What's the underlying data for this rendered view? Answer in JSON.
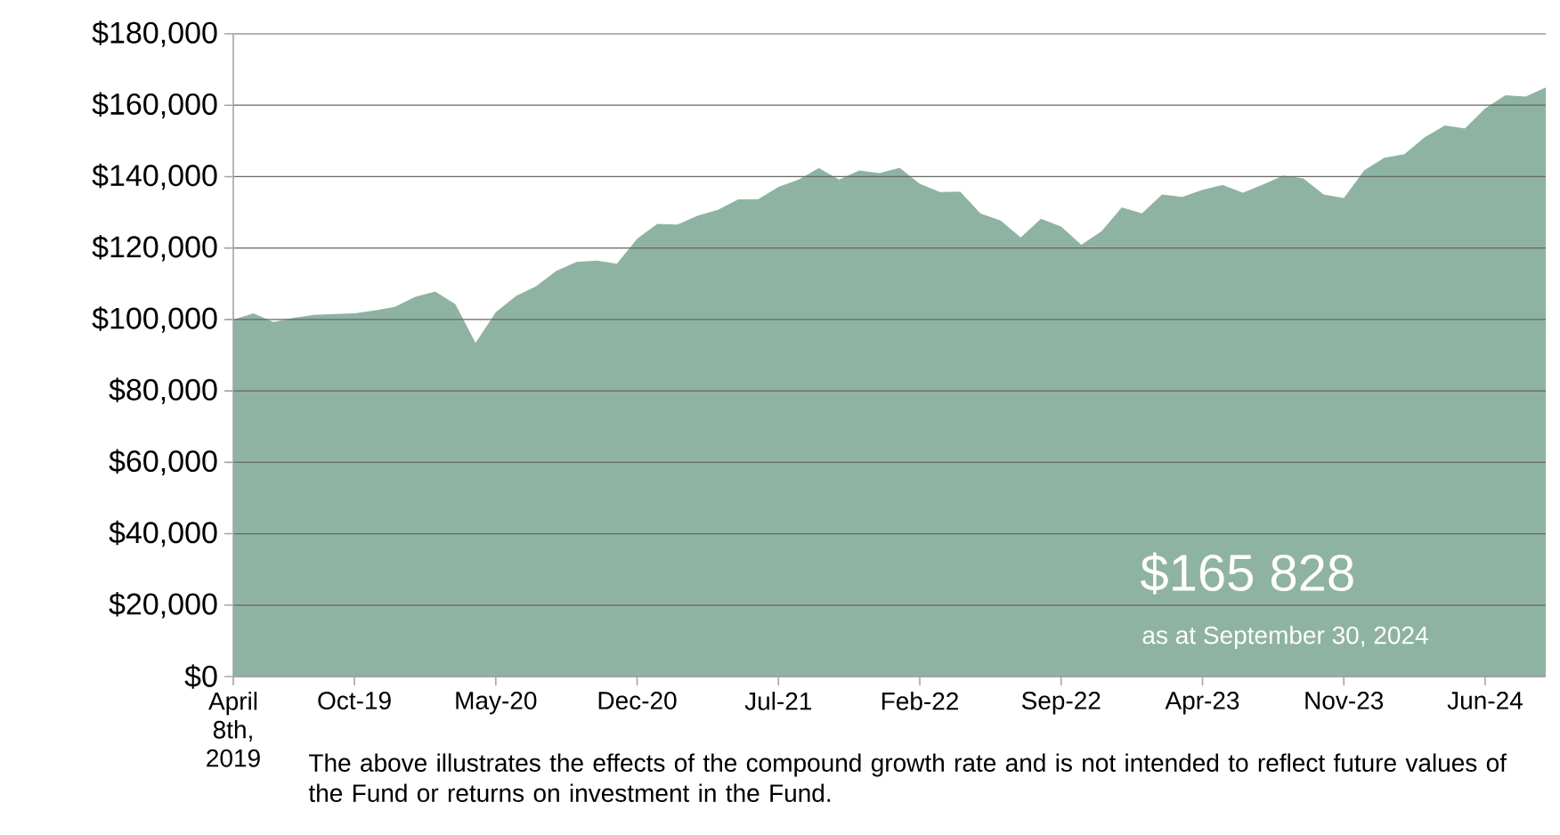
{
  "chart_data": {
    "type": "area",
    "categories": [
      "April 8th, 2019",
      null,
      null,
      null,
      null,
      null,
      "Oct-19",
      null,
      null,
      null,
      null,
      null,
      null,
      "May-20",
      null,
      null,
      null,
      null,
      null,
      null,
      "Dec-20",
      null,
      null,
      null,
      null,
      null,
      null,
      "Jul-21",
      null,
      null,
      null,
      null,
      null,
      null,
      "Feb-22",
      null,
      null,
      null,
      null,
      null,
      null,
      "Sep-22",
      null,
      null,
      null,
      null,
      null,
      null,
      "Apr-23",
      null,
      null,
      null,
      null,
      null,
      null,
      "Nov-23",
      null,
      null,
      null,
      null,
      null,
      null,
      "Jun-24",
      null,
      null,
      null
    ],
    "series": [
      {
        "color": "#8fb3a2",
        "values": [
          100000,
          101700,
          99300,
          100500,
          101300,
          101500,
          101700,
          102500,
          103500,
          106300,
          107800,
          104300,
          93400,
          102000,
          106600,
          109300,
          113600,
          116100,
          116500,
          115600,
          122600,
          126800,
          126600,
          129100,
          130700,
          133600,
          133700,
          137100,
          139200,
          142400,
          139200,
          141700,
          141000,
          142500,
          138000,
          135700,
          135800,
          129700,
          127700,
          123000,
          128200,
          126000,
          120900,
          124700,
          131400,
          129700,
          135000,
          134300,
          136300,
          137700,
          135500,
          137800,
          140300,
          139500,
          135000,
          134000,
          141700,
          145300,
          146300,
          151000,
          154300,
          153500,
          159100,
          162800,
          162400,
          165000
        ]
      }
    ],
    "ylim": [
      0,
      180000
    ],
    "yticks": [
      {
        "value": 0,
        "label": "$0"
      },
      {
        "value": 20000,
        "label": "$20,000"
      },
      {
        "value": 40000,
        "label": "$40,000"
      },
      {
        "value": 60000,
        "label": "$60,000"
      },
      {
        "value": 80000,
        "label": "$80,000"
      },
      {
        "value": 100000,
        "label": "$100,000"
      },
      {
        "value": 120000,
        "label": "$120,000"
      },
      {
        "value": 140000,
        "label": "$140,000"
      },
      {
        "value": 160000,
        "label": "$160,000"
      },
      {
        "value": 180000,
        "label": "$180,000"
      }
    ],
    "grid": "y",
    "annotations": [
      "The above illustrates the effects of the compound growth rate and is not intended to reflect future values of the Fund or returns on investment in the Fund.",
      "$165 828",
      "as at September 30, 2024"
    ]
  }
}
